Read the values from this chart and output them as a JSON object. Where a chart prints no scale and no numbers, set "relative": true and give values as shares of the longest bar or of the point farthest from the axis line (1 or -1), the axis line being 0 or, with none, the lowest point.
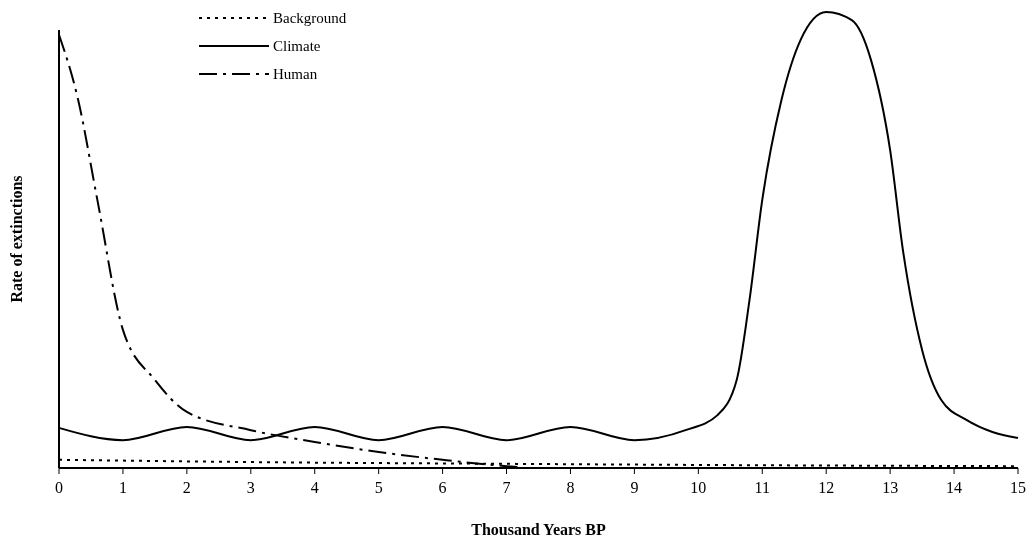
{
  "chart_data": {
    "type": "line",
    "relative": true,
    "xlabel": "Thousand Years BP",
    "ylabel": "Rate of extinctions",
    "xlim": [
      0,
      15
    ],
    "xticks": [
      0,
      1,
      2,
      3,
      4,
      5,
      6,
      7,
      8,
      9,
      10,
      11,
      12,
      13,
      14,
      15
    ],
    "grid": false,
    "legend": "top left",
    "series": [
      {
        "name": "Background",
        "color": "#000000",
        "line_style": "dotted",
        "x": [
          0,
          3,
          7.2,
          11,
          15
        ],
        "values": [
          0.018,
          0.013,
          0.009,
          0.006,
          0.004
        ]
      },
      {
        "name": "Climate",
        "color": "#000000",
        "line_style": "solid",
        "x": [
          0,
          1,
          2,
          3,
          4,
          5,
          6,
          7,
          8,
          9,
          9.8,
          10.3,
          10.6,
          10.8,
          11,
          11.3,
          11.6,
          12,
          12.4,
          12.7,
          13,
          13.2,
          13.5,
          13.8,
          14.2,
          14.6,
          15
        ],
        "values": [
          0.088,
          0.061,
          0.09,
          0.061,
          0.09,
          0.061,
          0.09,
          0.061,
          0.09,
          0.061,
          0.083,
          0.116,
          0.193,
          0.368,
          0.588,
          0.807,
          0.939,
          1,
          0.982,
          0.895,
          0.697,
          0.478,
          0.259,
          0.149,
          0.105,
          0.079,
          0.066
        ]
      },
      {
        "name": "Human",
        "color": "#000000",
        "line_style": "dashed",
        "x": [
          0,
          0.3,
          0.6,
          1,
          1.5,
          2,
          3,
          4,
          5,
          6,
          7,
          7.2
        ],
        "values": [
          0.95,
          0.807,
          0.588,
          0.303,
          0.193,
          0.123,
          0.083,
          0.057,
          0.035,
          0.018,
          0.004,
          0.002
        ]
      }
    ]
  }
}
